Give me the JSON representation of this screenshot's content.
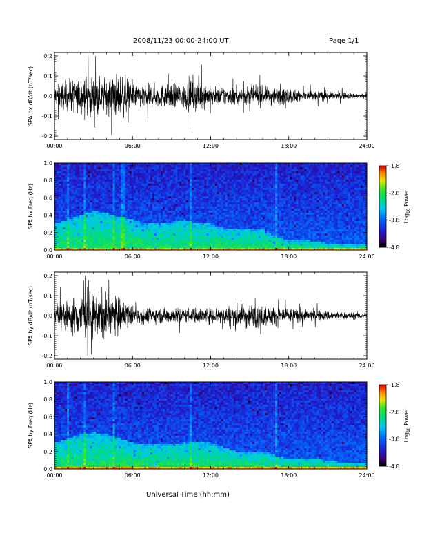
{
  "header": {
    "title": "2008/11/23  00:00-24:00 UT",
    "page": "Page 1/1",
    "xlabel": "Universal Time (hh:mm)"
  },
  "colorbar": {
    "label_prefix": "Log",
    "label_sub": "10",
    "label_suffix": " Power",
    "ticks": [
      "-1.8",
      "-2.8",
      "-3.8",
      "-4.8"
    ],
    "range": [
      -4.8,
      -1.8
    ]
  },
  "chart_data": [
    {
      "type": "line",
      "ylabel": "SPA bx dB/dt (nT/sec)",
      "xticks": [
        "00:00",
        "06:00",
        "12:00",
        "18:00",
        "24:00"
      ],
      "xlim_hours": [
        0,
        24
      ],
      "yticks": [
        "0.2",
        "0.1",
        "0.0",
        "-0.1",
        "-0.2"
      ],
      "ylim": [
        -0.2,
        0.2
      ],
      "envelope": {
        "x_hours": [
          0,
          0.5,
          1,
          1.5,
          2,
          2.5,
          3,
          3.5,
          4,
          4.5,
          5,
          5.5,
          6,
          7,
          8,
          9,
          10,
          10.5,
          11,
          11.5,
          12,
          13,
          14,
          15,
          16,
          17,
          18,
          19,
          20,
          21,
          22,
          23,
          24
        ],
        "amplitude": [
          0.05,
          0.07,
          0.08,
          0.09,
          0.09,
          0.11,
          0.1,
          0.09,
          0.1,
          0.11,
          0.12,
          0.1,
          0.06,
          0.06,
          0.06,
          0.06,
          0.07,
          0.08,
          0.09,
          0.07,
          0.05,
          0.05,
          0.05,
          0.05,
          0.05,
          0.05,
          0.04,
          0.03,
          0.03,
          0.02,
          0.02,
          0.015,
          0.015
        ]
      }
    },
    {
      "type": "heatmap",
      "ylabel": "SPA bx Freq (Hz)",
      "xticks": [
        "00:00",
        "06:00",
        "12:00",
        "18:00",
        "24:00"
      ],
      "xlim_hours": [
        0,
        24
      ],
      "yticks": [
        "1.0",
        "0.8",
        "0.6",
        "0.4",
        "0.2",
        "0.0"
      ],
      "ylim_hz": [
        0,
        1
      ],
      "low_freq_extent_hz": [
        0.3,
        0.35,
        0.4,
        0.45,
        0.42,
        0.38,
        0.35,
        0.3,
        0.3,
        0.32,
        0.35,
        0.3,
        0.3,
        0.25,
        0.25,
        0.25,
        0.25,
        0.15,
        0.12,
        0.12,
        0.1,
        0.08,
        0.07,
        0.07,
        0.06
      ],
      "vertical_bursts_hours": [
        1.0,
        2.3,
        4.6,
        5.3,
        10.5,
        17.0
      ]
    },
    {
      "type": "line",
      "ylabel": "SPA by dB/dt (nT/sec)",
      "xticks": [
        "00:00",
        "06:00",
        "12:00",
        "18:00",
        "24:00"
      ],
      "xlim_hours": [
        0,
        24
      ],
      "yticks": [
        "0.2",
        "0.1",
        "0.0",
        "-0.1",
        "-0.2"
      ],
      "ylim": [
        -0.2,
        0.2
      ],
      "envelope": {
        "x_hours": [
          0,
          0.5,
          1,
          1.5,
          2,
          2.5,
          3,
          3.5,
          4,
          4.5,
          5,
          5.5,
          6,
          7,
          8,
          9,
          10,
          11,
          12,
          13,
          14,
          15,
          16,
          17,
          18,
          19,
          20,
          21,
          22,
          23,
          24
        ],
        "amplitude": [
          0.04,
          0.07,
          0.08,
          0.1,
          0.12,
          0.13,
          0.11,
          0.12,
          0.12,
          0.1,
          0.1,
          0.08,
          0.05,
          0.04,
          0.04,
          0.04,
          0.04,
          0.04,
          0.04,
          0.05,
          0.06,
          0.07,
          0.06,
          0.05,
          0.04,
          0.03,
          0.03,
          0.025,
          0.02,
          0.02,
          0.015
        ]
      }
    },
    {
      "type": "heatmap",
      "ylabel": "SPA by Freq (Hz)",
      "xticks": [
        "00:00",
        "06:00",
        "12:00",
        "18:00",
        "24:00"
      ],
      "xlim_hours": [
        0,
        24
      ],
      "yticks": [
        "1.0",
        "0.8",
        "0.6",
        "0.4",
        "0.2",
        "0.0"
      ],
      "ylim_hz": [
        0,
        1
      ],
      "low_freq_extent_hz": [
        0.3,
        0.35,
        0.4,
        0.42,
        0.4,
        0.35,
        0.3,
        0.28,
        0.28,
        0.28,
        0.3,
        0.3,
        0.3,
        0.25,
        0.2,
        0.2,
        0.2,
        0.15,
        0.12,
        0.12,
        0.12,
        0.1,
        0.08,
        0.07,
        0.06
      ],
      "vertical_bursts_hours": [
        1.0,
        2.3,
        4.6,
        10.5,
        17.0
      ]
    }
  ]
}
